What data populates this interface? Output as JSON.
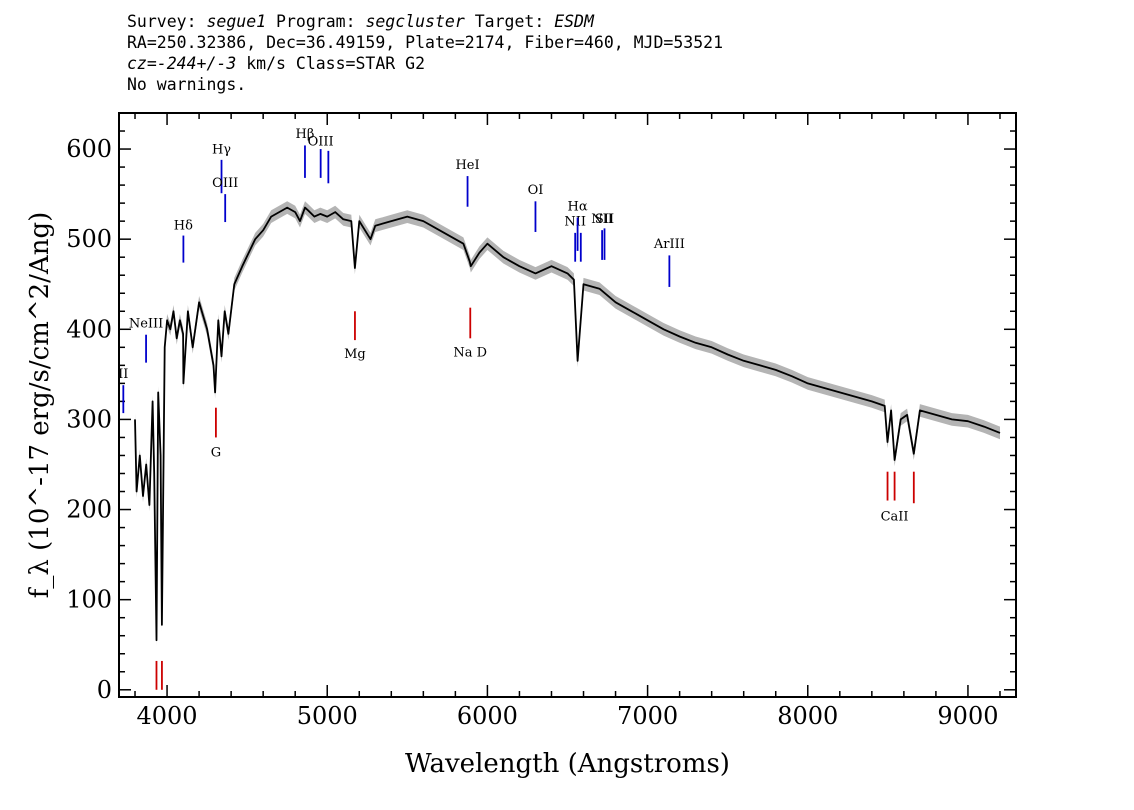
{
  "header": {
    "l1_survey_label": "Survey: ",
    "l1_survey": "segue1",
    "l1_program_label": " Program: ",
    "l1_program": "segcluster",
    "l1_target_label": " Target: ",
    "l1_target": "ESDM",
    "line2": "RA=250.32386, Dec=36.49159, Plate=2174, Fiber=460, MJD=53521",
    "l3_cz": "cz=-244+/-3",
    "l3_rest": " km/s Class=STAR G2",
    "line4": "No warnings."
  },
  "chart_data": {
    "type": "line",
    "xlabel": "Wavelength (Angstroms)",
    "ylabel": "f_λ (10^-17 erg/s/cm^2/Ang)",
    "xlim": [
      3700,
      9300
    ],
    "ylim": [
      -8,
      640
    ],
    "xticks": [
      4000,
      5000,
      6000,
      7000,
      8000,
      9000
    ],
    "yticks": [
      0,
      100,
      200,
      300,
      400,
      500,
      600
    ],
    "colors": {
      "spectrum": "#000000",
      "error": "#b4b4b4",
      "emission": "#0000cc",
      "absorption": "#cc0000"
    },
    "spectrum": {
      "x": [
        3800,
        3810,
        3830,
        3850,
        3870,
        3890,
        3910,
        3920,
        3934,
        3945,
        3960,
        3968,
        3985,
        4000,
        4020,
        4040,
        4060,
        4080,
        4100,
        4102,
        4130,
        4160,
        4200,
        4250,
        4290,
        4300,
        4320,
        4340,
        4360,
        4383,
        4420,
        4470,
        4550,
        4600,
        4650,
        4700,
        4750,
        4800,
        4830,
        4861,
        4880,
        4920,
        4957,
        5000,
        5050,
        5100,
        5150,
        5173,
        5200,
        5270,
        5300,
        5400,
        5500,
        5600,
        5700,
        5800,
        5850,
        5890,
        5896,
        5950,
        6000,
        6100,
        6200,
        6300,
        6400,
        6500,
        6540,
        6563,
        6600,
        6700,
        6800,
        6900,
        7000,
        7100,
        7200,
        7300,
        7400,
        7500,
        7600,
        7700,
        7800,
        7900,
        8000,
        8100,
        8200,
        8300,
        8400,
        8480,
        8498,
        8520,
        8542,
        8580,
        8620,
        8662,
        8700,
        8800,
        8900,
        9000,
        9100,
        9200
      ],
      "y": [
        300,
        220,
        260,
        215,
        250,
        205,
        320,
        240,
        55,
        330,
        260,
        72,
        380,
        410,
        400,
        420,
        390,
        410,
        395,
        340,
        420,
        380,
        430,
        400,
        360,
        330,
        410,
        370,
        420,
        395,
        450,
        470,
        500,
        510,
        525,
        530,
        535,
        530,
        520,
        535,
        532,
        525,
        528,
        525,
        530,
        522,
        520,
        468,
        520,
        500,
        515,
        520,
        525,
        520,
        510,
        500,
        495,
        475,
        470,
        485,
        495,
        480,
        470,
        462,
        470,
        462,
        455,
        365,
        450,
        445,
        430,
        420,
        410,
        400,
        392,
        385,
        380,
        372,
        365,
        360,
        355,
        348,
        340,
        335,
        330,
        325,
        320,
        315,
        275,
        310,
        255,
        300,
        305,
        262,
        310,
        305,
        300,
        298,
        292,
        285
      ]
    },
    "emission_lines": [
      {
        "label": "Hβ",
        "x": 4861,
        "y0": 568,
        "y1": 604,
        "label_y": 612
      },
      {
        "label": "OIII",
        "x": 4959,
        "y0": 568,
        "y1": 600,
        "label_y": 604
      },
      {
        "label": "",
        "x": 5007,
        "y0": 562,
        "y1": 598,
        "label_y": 0
      },
      {
        "label": "Hγ",
        "x": 4340,
        "y0": 551,
        "y1": 588,
        "label_y": 595
      },
      {
        "label": "OIII",
        "x": 4363,
        "y0": 519,
        "y1": 550,
        "label_y": 558
      },
      {
        "label": "Hδ",
        "x": 4102,
        "y0": 474,
        "y1": 504,
        "label_y": 511
      },
      {
        "label": "NeIII",
        "x": 3869,
        "y0": 363,
        "y1": 394,
        "label_y": 402
      },
      {
        "label": "II",
        "x": 3727,
        "y0": 307,
        "y1": 338,
        "label_y": 346
      },
      {
        "label": "HeI",
        "x": 5876,
        "y0": 536,
        "y1": 570,
        "label_y": 578
      },
      {
        "label": "OI",
        "x": 6300,
        "y0": 508,
        "y1": 542,
        "label_y": 550
      },
      {
        "label": "NII",
        "x": 6548,
        "y0": 475,
        "y1": 507,
        "label_y": 515
      },
      {
        "label": "Hα",
        "x": 6563,
        "y0": 487,
        "y1": 524,
        "label_y": 532
      },
      {
        "label": "",
        "x": 6583,
        "y0": 475,
        "y1": 507,
        "label_y": 0
      },
      {
        "label": "NII",
        "x": 6716,
        "y0": 477,
        "y1": 510,
        "label_y": 518
      },
      {
        "label": "SII",
        "x": 6731,
        "y0": 477,
        "y1": 512,
        "label_y": 518
      },
      {
        "label": "ArIII",
        "x": 7136,
        "y0": 447,
        "y1": 482,
        "label_y": 490
      }
    ],
    "absorption_lines": [
      {
        "label": "G",
        "x": 4305,
        "y0": 280,
        "y1": 313,
        "label_y": 259
      },
      {
        "label": "Mg",
        "x": 5173,
        "y0": 388,
        "y1": 420,
        "label_y": 368
      },
      {
        "label": "Na D",
        "x": 5893,
        "y0": 390,
        "y1": 424,
        "label_y": 370
      },
      {
        "label": "",
        "x": 3934,
        "y0": 0,
        "y1": 32,
        "label_y": 0
      },
      {
        "label": "",
        "x": 3968,
        "y0": 0,
        "y1": 32,
        "label_y": 0
      },
      {
        "label": "",
        "x": 8498,
        "y0": 210,
        "y1": 242,
        "label_y": 0
      },
      {
        "label": "CaII",
        "x": 8542,
        "y0": 210,
        "y1": 242,
        "label_y": 188
      },
      {
        "label": "",
        "x": 8662,
        "y0": 207,
        "y1": 242,
        "label_y": 0
      }
    ]
  }
}
